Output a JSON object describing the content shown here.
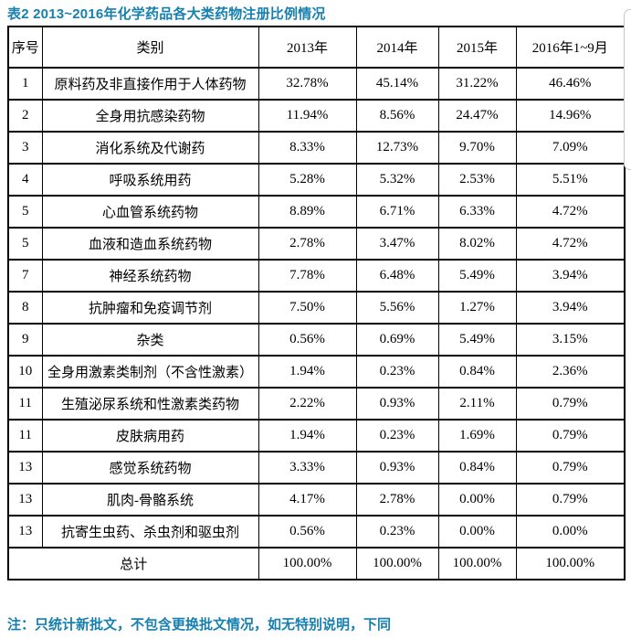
{
  "title": "表2 2013~2016年化学药品各大类药物注册比例情况",
  "table": {
    "headers": [
      "序号",
      "类别",
      "2013年",
      "2014年",
      "2015年",
      "2016年1~9月"
    ],
    "rows": [
      {
        "no": "1",
        "category": "原料药及非直接作用于人体药物",
        "values": [
          "32.78%",
          "45.14%",
          "31.22%",
          "46.46%"
        ]
      },
      {
        "no": "2",
        "category": "全身用抗感染药物",
        "values": [
          "11.94%",
          "8.56%",
          "24.47%",
          "14.96%"
        ]
      },
      {
        "no": "3",
        "category": "消化系统及代谢药",
        "values": [
          "8.33%",
          "12.73%",
          "9.70%",
          "7.09%"
        ]
      },
      {
        "no": "4",
        "category": "呼吸系统用药",
        "values": [
          "5.28%",
          "5.32%",
          "2.53%",
          "5.51%"
        ]
      },
      {
        "no": "5",
        "category": "心血管系统药物",
        "values": [
          "8.89%",
          "6.71%",
          "6.33%",
          "4.72%"
        ]
      },
      {
        "no": "5",
        "category": "血液和造血系统药物",
        "values": [
          "2.78%",
          "3.47%",
          "8.02%",
          "4.72%"
        ]
      },
      {
        "no": "7",
        "category": "神经系统药物",
        "values": [
          "7.78%",
          "6.48%",
          "5.49%",
          "3.94%"
        ]
      },
      {
        "no": "8",
        "category": "抗肿瘤和免疫调节剂",
        "values": [
          "7.50%",
          "5.56%",
          "1.27%",
          "3.94%"
        ]
      },
      {
        "no": "9",
        "category": "杂类",
        "values": [
          "0.56%",
          "0.69%",
          "5.49%",
          "3.15%"
        ]
      },
      {
        "no": "10",
        "category": "全身用激素类制剂（不含性激素）",
        "values": [
          "1.94%",
          "0.23%",
          "0.84%",
          "2.36%"
        ]
      },
      {
        "no": "11",
        "category": "生殖泌尿系统和性激素类药物",
        "values": [
          "2.22%",
          "0.93%",
          "2.11%",
          "0.79%"
        ]
      },
      {
        "no": "11",
        "category": "皮肤病用药",
        "values": [
          "1.94%",
          "0.23%",
          "1.69%",
          "0.79%"
        ]
      },
      {
        "no": "13",
        "category": "感觉系统药物",
        "values": [
          "3.33%",
          "0.93%",
          "0.84%",
          "0.79%"
        ]
      },
      {
        "no": "13",
        "category": "肌肉-骨骼系统",
        "values": [
          "4.17%",
          "2.78%",
          "0.00%",
          "0.79%"
        ]
      },
      {
        "no": "13",
        "category": "抗寄生虫药、杀虫剂和驱虫剂",
        "values": [
          "0.56%",
          "0.23%",
          "0.00%",
          "0.00%"
        ]
      }
    ],
    "total": {
      "label": "总计",
      "values": [
        "100.00%",
        "100.00%",
        "100.00%",
        "100.00%"
      ]
    }
  },
  "footnote": "注：只统计新批文，不包含更换批文情况，如无特别说明，下同",
  "colors": {
    "accent": "#1780af",
    "table_border": "#000000",
    "text": "#000000",
    "artifact_border": "#c8c8c8"
  }
}
